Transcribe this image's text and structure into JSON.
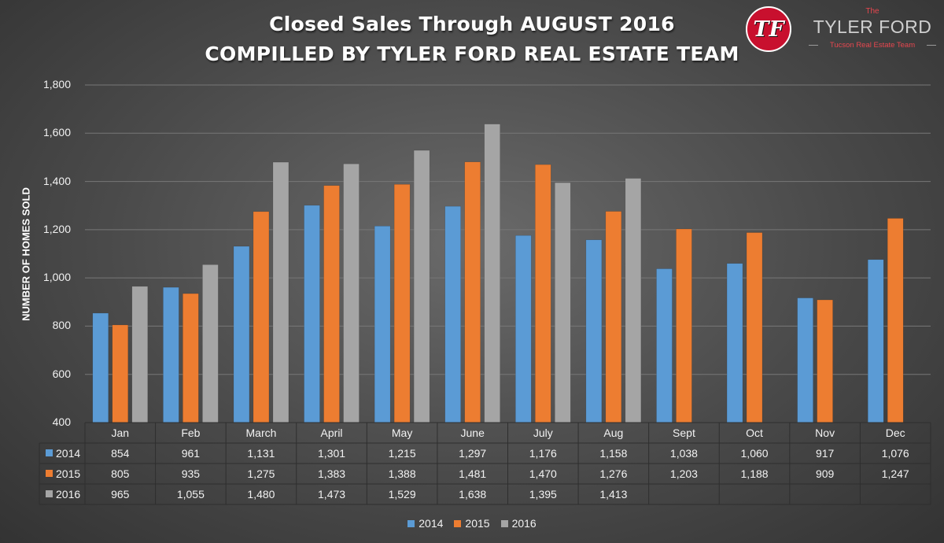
{
  "title": "Closed Sales Through AUGUST 2016",
  "subtitle": "COMPILLED BY TYLER FORD REAL ESTATE TEAM",
  "logo": {
    "monogram": "TF",
    "the": "The",
    "name": "TYLER FORD",
    "tagline": "Tucson Real Estate Team"
  },
  "colors": {
    "2014": "#5b9bd5",
    "2015": "#ed7d31",
    "2016": "#a5a5a5"
  },
  "chart_data": {
    "type": "bar",
    "title": "Closed Sales Through AUGUST 2016",
    "subtitle": "COMPILLED BY TYLER FORD REAL ESTATE TEAM",
    "xlabel": "",
    "ylabel": "NUMBER OF HOMES SOLD",
    "ylim": [
      400,
      1800
    ],
    "yticks": [
      400,
      600,
      800,
      1000,
      1200,
      1400,
      1600,
      1800
    ],
    "ytick_labels": [
      "400",
      "600",
      "800",
      "1,000",
      "1,200",
      "1,400",
      "1,600",
      "1,800"
    ],
    "grid": true,
    "legend_position": "bottom",
    "categories": [
      "Jan",
      "Feb",
      "March",
      "April",
      "May",
      "June",
      "July",
      "Aug",
      "Sept",
      "Oct",
      "Nov",
      "Dec"
    ],
    "series": [
      {
        "name": "2014",
        "values": [
          854,
          961,
          1131,
          1301,
          1215,
          1297,
          1176,
          1158,
          1038,
          1060,
          917,
          1076
        ],
        "labels": [
          "854",
          "961",
          "1,131",
          "1,301",
          "1,215",
          "1,297",
          "1,176",
          "1,158",
          "1,038",
          "1,060",
          "917",
          "1,076"
        ]
      },
      {
        "name": "2015",
        "values": [
          805,
          935,
          1275,
          1383,
          1388,
          1481,
          1470,
          1276,
          1203,
          1188,
          909,
          1247
        ],
        "labels": [
          "805",
          "935",
          "1,275",
          "1,383",
          "1,388",
          "1,481",
          "1,470",
          "1,276",
          "1,203",
          "1,188",
          "909",
          "1,247"
        ]
      },
      {
        "name": "2016",
        "values": [
          965,
          1055,
          1480,
          1473,
          1529,
          1638,
          1395,
          1413,
          null,
          null,
          null,
          null
        ],
        "labels": [
          "965",
          "1,055",
          "1,480",
          "1,473",
          "1,529",
          "1,638",
          "1,395",
          "1,413",
          "",
          "",
          "",
          ""
        ]
      }
    ]
  }
}
